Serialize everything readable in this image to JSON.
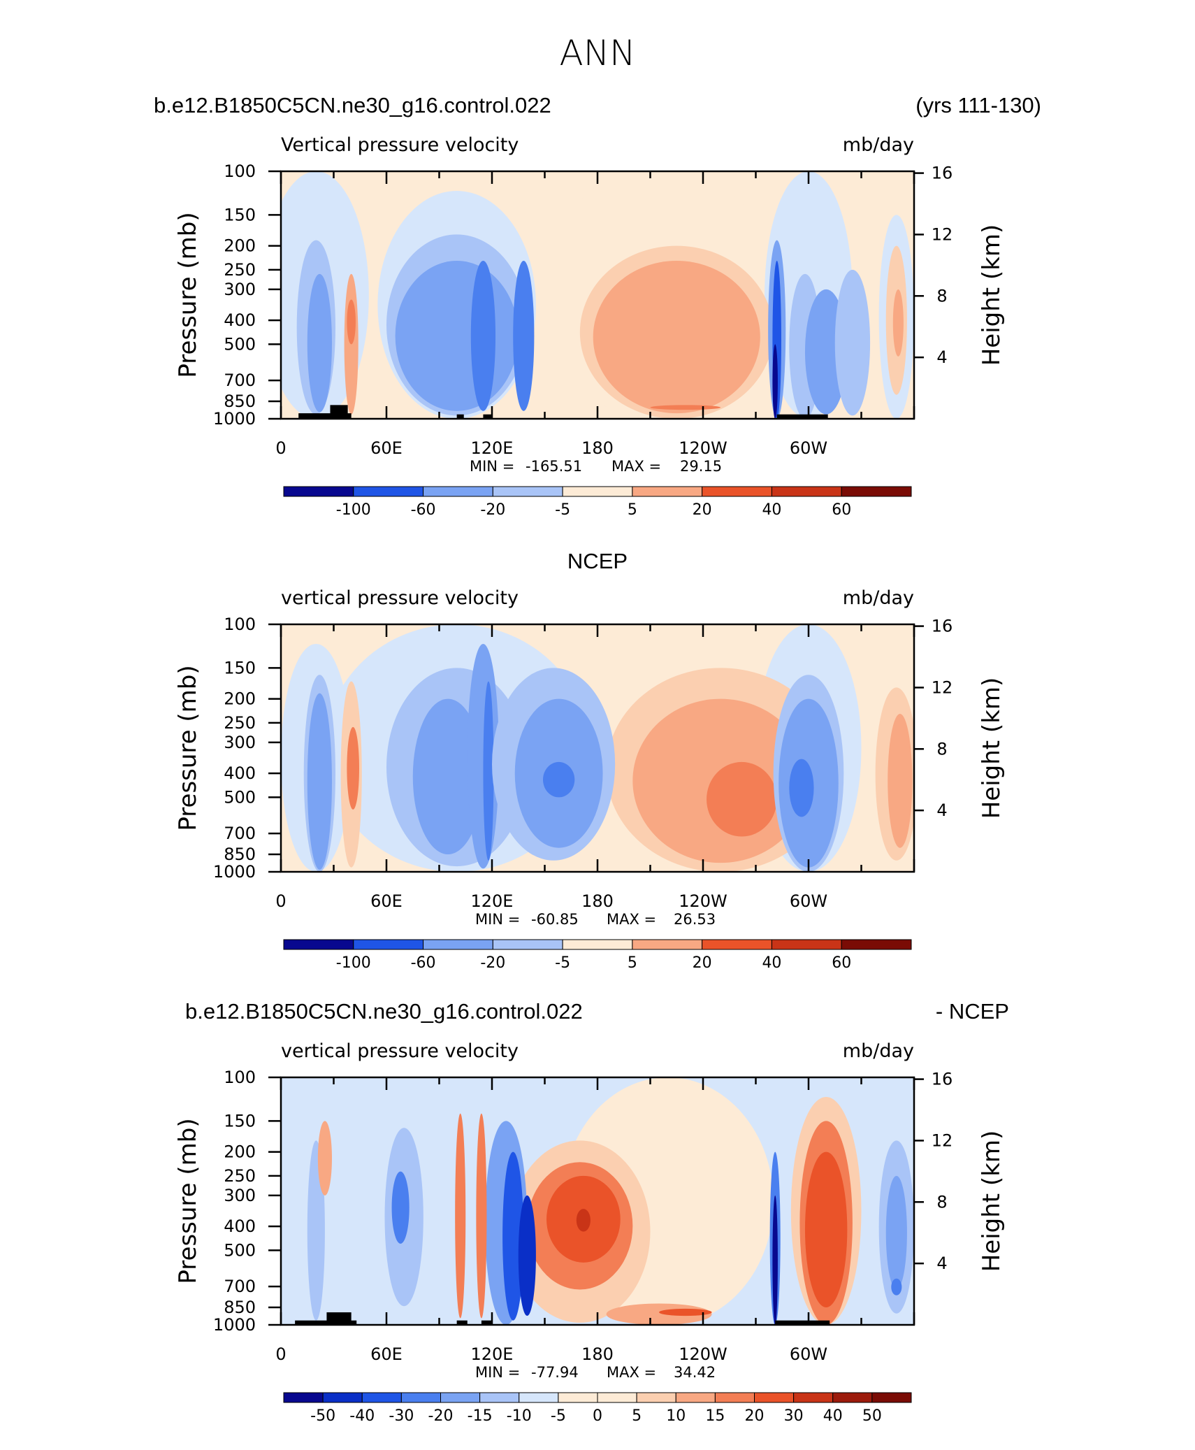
{
  "figure": {
    "title": "ANN",
    "case_name": "b.e12.B1850C5CN.ne30_g16.control.022",
    "years": "(yrs 111-130)"
  },
  "chart_data": [
    {
      "type": "heatmap",
      "panel_title": "",
      "left_title": "b.e12.B1850C5CN.ne30_g16.control.022",
      "right_title": "(yrs 111-130)",
      "variable": "Vertical pressure velocity",
      "units": "mb/day",
      "ylabel": "Pressure (mb)",
      "y2label": "Height (km)",
      "x_ticks": [
        "0",
        "60E",
        "120E",
        "180",
        "120W",
        "60W"
      ],
      "y_ticks": [
        100,
        150,
        200,
        250,
        300,
        400,
        500,
        700,
        850,
        1000
      ],
      "y2_ticks": [
        16,
        12,
        8,
        4
      ],
      "min_label": "MIN =",
      "min_value": "-165.51",
      "max_label": "MAX =",
      "max_value": "29.15",
      "colorbar_labels": [
        "-100",
        "-60",
        "-20",
        "-5",
        "5",
        "20",
        "40",
        "60"
      ]
    },
    {
      "type": "heatmap",
      "panel_title": "NCEP",
      "left_title": "",
      "right_title": "",
      "variable": "vertical pressure velocity",
      "units": "mb/day",
      "ylabel": "Pressure (mb)",
      "y2label": "Height (km)",
      "x_ticks": [
        "0",
        "60E",
        "120E",
        "180",
        "120W",
        "60W"
      ],
      "y_ticks": [
        100,
        150,
        200,
        250,
        300,
        400,
        500,
        700,
        850,
        1000
      ],
      "y2_ticks": [
        16,
        12,
        8,
        4
      ],
      "min_label": "MIN =",
      "min_value": "-60.85",
      "max_label": "MAX =",
      "max_value": "26.53",
      "colorbar_labels": [
        "-100",
        "-60",
        "-20",
        "-5",
        "5",
        "20",
        "40",
        "60"
      ]
    },
    {
      "type": "heatmap",
      "panel_title": "",
      "left_title": "b.e12.B1850C5CN.ne30_g16.control.022",
      "right_title": "- NCEP",
      "variable": "vertical pressure velocity",
      "units": "mb/day",
      "ylabel": "Pressure (mb)",
      "y2label": "Height (km)",
      "x_ticks": [
        "0",
        "60E",
        "120E",
        "180",
        "120W",
        "60W"
      ],
      "y_ticks": [
        100,
        150,
        200,
        250,
        300,
        400,
        500,
        700,
        850,
        1000
      ],
      "y2_ticks": [
        16,
        12,
        8,
        4
      ],
      "min_label": "MIN =",
      "min_value": "-77.94",
      "max_label": "MAX =",
      "max_value": "34.42",
      "colorbar_labels": [
        "-50",
        "-40",
        "-30",
        "-20",
        "-15",
        "-10",
        "-5",
        "0",
        "5",
        "10",
        "15",
        "20",
        "30",
        "40",
        "50"
      ]
    }
  ],
  "colors": {
    "palette": [
      "#08088f",
      "#0a2fc7",
      "#1f55e6",
      "#4a7fef",
      "#7aa3f3",
      "#a9c4f7",
      "#d6e6fb",
      "#fdebd6",
      "#fbcfb0",
      "#f8a883",
      "#f37e55",
      "#ea5329",
      "#c93417",
      "#9c1b0c",
      "#7a0c05"
    ],
    "land_mask": "#000000"
  }
}
